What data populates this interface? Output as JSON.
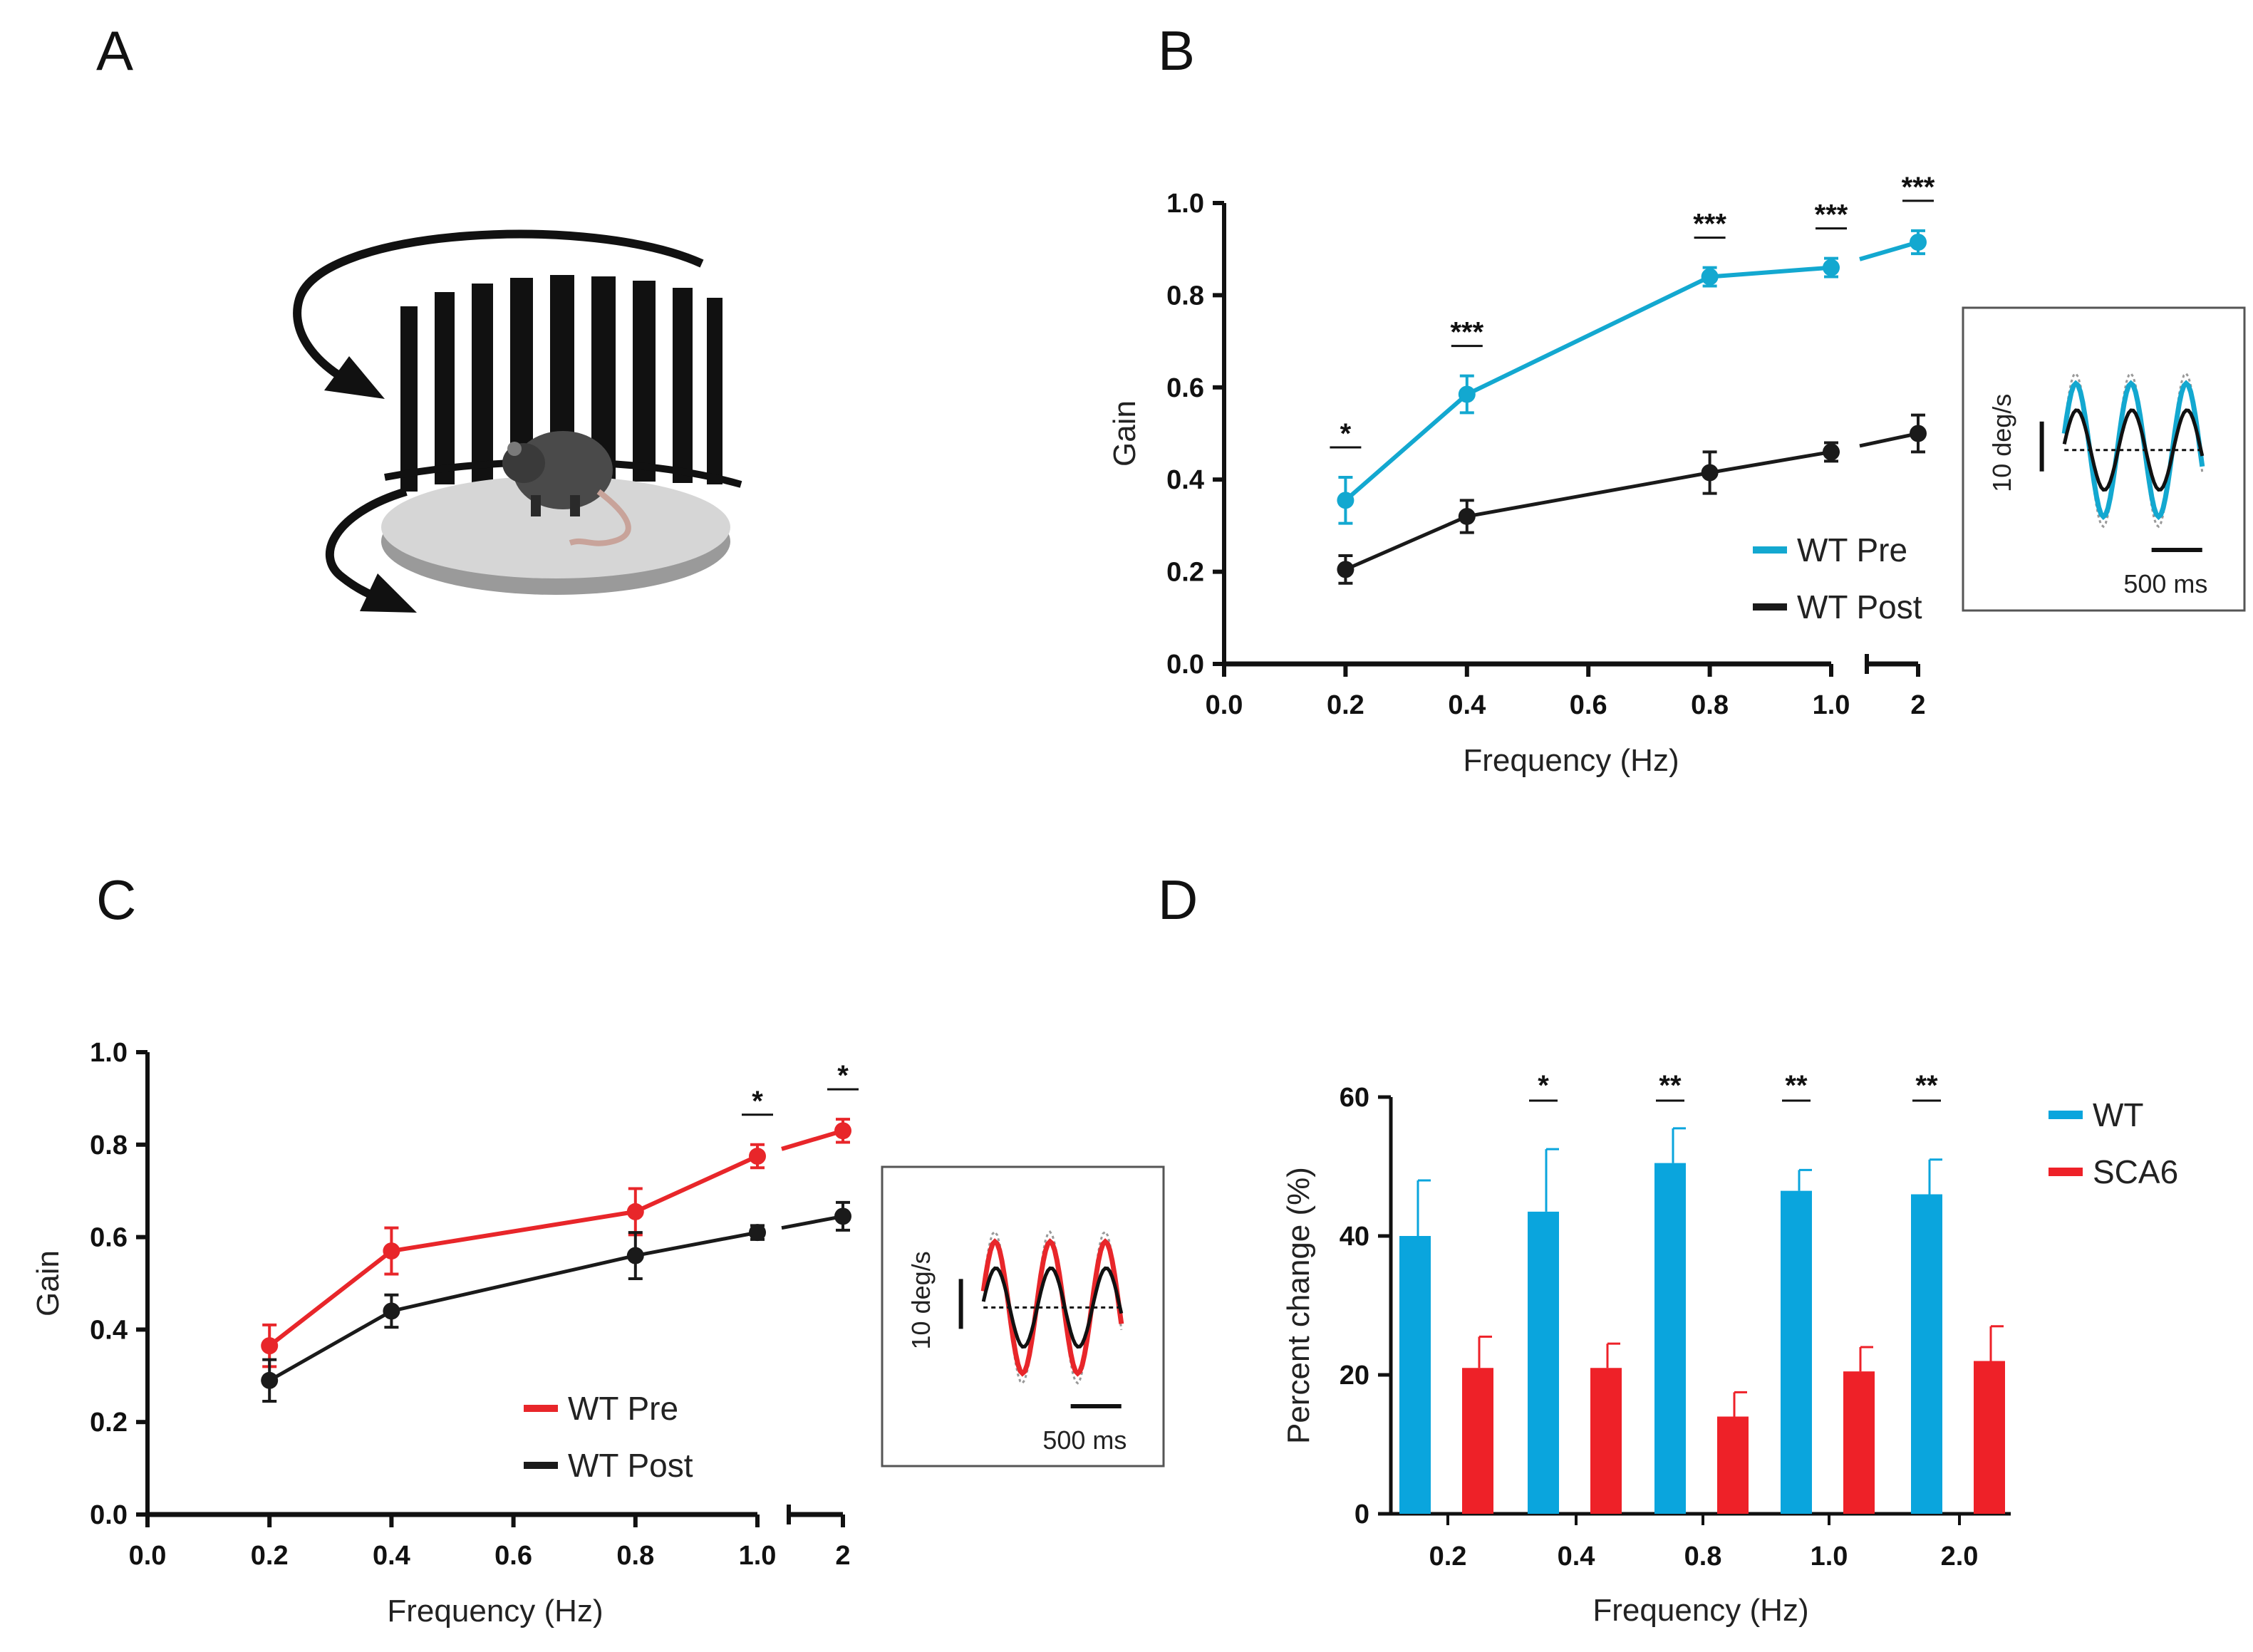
{
  "panel_labels": {
    "a": "A",
    "b": "B",
    "c": "C",
    "d": "D"
  },
  "colors": {
    "wt_pre_b": "#13a8d0",
    "wt_pre_c": "#e8262a",
    "post": "#1a1a1a",
    "wt_bar": "#0aa5dd",
    "sca6_bar": "#ee2128"
  },
  "illustration": {
    "icon": "rotating-drum-mouse-illustration"
  },
  "chart_data": [
    {
      "id": "B",
      "type": "line",
      "x_tick_labels": [
        "0.0",
        "0.2",
        "0.4",
        "0.6",
        "0.8",
        "1.0",
        "2"
      ],
      "y_tick_labels": [
        "0.0",
        "0.2",
        "0.4",
        "0.6",
        "0.8",
        "1.0"
      ],
      "ylim": [
        0,
        1.0
      ],
      "xlabel": "Frequency (Hz)",
      "ylabel": "Gain",
      "x": [
        0.2,
        0.4,
        0.8,
        1.0,
        2
      ],
      "series": [
        {
          "name": "WT Pre",
          "values": [
            0.355,
            0.585,
            0.84,
            0.86,
            0.915
          ],
          "errors": [
            0.05,
            0.04,
            0.02,
            0.02,
            0.025
          ]
        },
        {
          "name": "WT Post",
          "values": [
            0.205,
            0.32,
            0.415,
            0.46,
            0.5
          ],
          "errors": [
            0.03,
            0.035,
            0.045,
            0.02,
            0.04
          ]
        }
      ],
      "significance": [
        "*",
        "***",
        "***",
        "***",
        "***"
      ],
      "legend_position": "bottom-right",
      "inset": {
        "y_scale_label": "10 deg/s",
        "x_scale_label": "500 ms"
      }
    },
    {
      "id": "C",
      "type": "line",
      "x_tick_labels": [
        "0.0",
        "0.2",
        "0.4",
        "0.6",
        "0.8",
        "1.0",
        "2"
      ],
      "y_tick_labels": [
        "0.0",
        "0.2",
        "0.4",
        "0.6",
        "0.8",
        "1.0"
      ],
      "ylim": [
        0,
        1.0
      ],
      "xlabel": "Frequency (Hz)",
      "ylabel": "Gain",
      "x": [
        0.2,
        0.4,
        0.8,
        1.0,
        2
      ],
      "series": [
        {
          "name": "WT Pre",
          "values": [
            0.365,
            0.57,
            0.655,
            0.775,
            0.83
          ],
          "errors": [
            0.045,
            0.05,
            0.05,
            0.025,
            0.025
          ]
        },
        {
          "name": "WT Post",
          "values": [
            0.29,
            0.44,
            0.56,
            0.61,
            0.645
          ],
          "errors": [
            0.045,
            0.035,
            0.05,
            0.015,
            0.03
          ]
        }
      ],
      "significance": [
        "",
        "",
        "",
        "*",
        "*"
      ],
      "legend_position": "bottom-center",
      "inset": {
        "y_scale_label": "10 deg/s",
        "x_scale_label": "500 ms"
      }
    },
    {
      "id": "D",
      "type": "bar",
      "categories": [
        "0.2",
        "0.4",
        "0.8",
        "1.0",
        "2.0"
      ],
      "y_tick_labels": [
        "0",
        "20",
        "40",
        "60"
      ],
      "ylim": [
        0,
        60
      ],
      "xlabel": "Frequency (Hz)",
      "ylabel": "Percent change (%)",
      "series": [
        {
          "name": "WT",
          "values": [
            40,
            43.5,
            50.5,
            46.5,
            46
          ],
          "errors": [
            8,
            9,
            5,
            3,
            5
          ]
        },
        {
          "name": "SCA6",
          "values": [
            21,
            21,
            14,
            20.5,
            22
          ],
          "errors": [
            4.5,
            3.5,
            3.5,
            3.5,
            5
          ]
        }
      ],
      "significance": [
        "",
        "*",
        "**",
        "**",
        "**"
      ],
      "legend_position": "top-right"
    }
  ]
}
